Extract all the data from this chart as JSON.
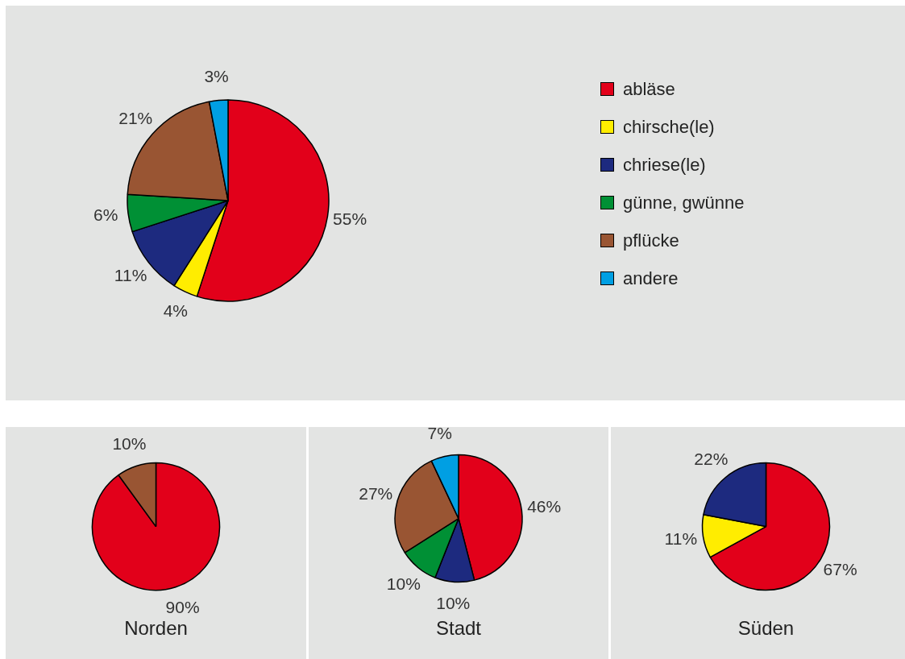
{
  "chart_data": [
    {
      "type": "pie",
      "categories": [
        "abläse",
        "chirsche(le)",
        "chriese(le)",
        "günne, gwünne",
        "pflücke",
        "andere"
      ],
      "values": [
        55,
        4,
        11,
        6,
        21,
        3
      ],
      "colors": [
        "#e2001a",
        "#ffed00",
        "#1d2a7f",
        "#009035",
        "#995533",
        "#009fe3"
      ],
      "value_labels": [
        "55%",
        "4%",
        "11%",
        "6%",
        "21%",
        "3%"
      ],
      "legend": "right"
    },
    {
      "type": "pie",
      "title": "Norden",
      "categories": [
        null,
        null
      ],
      "values": [
        90,
        10
      ],
      "colors": [
        "#e2001a",
        "#995533"
      ],
      "value_labels": [
        "90%",
        "10%"
      ]
    },
    {
      "type": "pie",
      "title": "Stadt",
      "categories": [
        null,
        null,
        null,
        null,
        null
      ],
      "values": [
        46,
        10,
        10,
        27,
        7
      ],
      "colors": [
        "#e2001a",
        "#1d2a7f",
        "#009035",
        "#995533",
        "#009fe3"
      ],
      "value_labels": [
        "46%",
        "10%",
        "10%",
        "27%",
        "7%"
      ]
    },
    {
      "type": "pie",
      "title": "Süden",
      "categories": [
        null,
        null,
        null
      ],
      "values": [
        67,
        11,
        22
      ],
      "colors": [
        "#e2001a",
        "#ffed00",
        "#1d2a7f"
      ],
      "value_labels": [
        "67%",
        "11%",
        "22%"
      ]
    }
  ]
}
